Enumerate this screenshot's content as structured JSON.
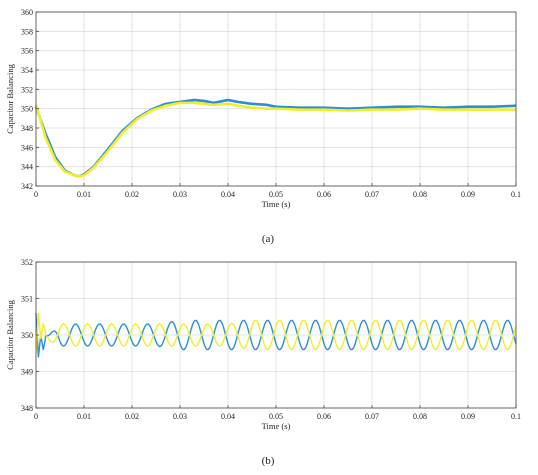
{
  "colors": {
    "series_blue": "#2b8fd6",
    "series_yellow": "#f2ee25",
    "grid": "#dddddd",
    "axis": "#444444"
  },
  "chart_data": [
    {
      "type": "line",
      "caption": "(a)",
      "xlabel": "Time (s)",
      "ylabel": "Capacitor Balancing",
      "xlim": [
        0,
        0.1
      ],
      "ylim": [
        342,
        360
      ],
      "xticks": [
        0,
        0.01,
        0.02,
        0.03,
        0.04,
        0.05,
        0.06,
        0.07,
        0.08,
        0.09,
        0.1
      ],
      "xtick_labels": [
        "0",
        "0.01",
        "0.02",
        "0.03",
        "0.04",
        "0.05",
        "0.06",
        "0.07",
        "0.08",
        "0.09",
        "0.1"
      ],
      "yticks": [
        342,
        344,
        346,
        348,
        350,
        352,
        354,
        356,
        358,
        360
      ],
      "ytick_labels": [
        "342",
        "344",
        "346",
        "348",
        "350",
        "352",
        "354",
        "356",
        "358",
        "360"
      ],
      "grid": true,
      "series": [
        {
          "color": "#2b8fd6",
          "x": [
            0,
            0.002,
            0.004,
            0.006,
            0.008,
            0.009,
            0.01,
            0.012,
            0.015,
            0.018,
            0.021,
            0.024,
            0.027,
            0.03,
            0.033,
            0.035,
            0.037,
            0.04,
            0.042,
            0.045,
            0.048,
            0.05,
            0.055,
            0.06,
            0.065,
            0.07,
            0.075,
            0.08,
            0.085,
            0.09,
            0.095,
            0.1
          ],
          "y": [
            350.2,
            347.4,
            345.0,
            343.6,
            343.1,
            343.0,
            343.2,
            344.0,
            345.8,
            347.7,
            349.0,
            349.9,
            350.5,
            350.7,
            350.9,
            350.8,
            350.6,
            350.9,
            350.7,
            350.5,
            350.4,
            350.2,
            350.1,
            350.1,
            350.0,
            350.1,
            350.2,
            350.2,
            350.1,
            350.2,
            350.2,
            350.3
          ]
        },
        {
          "color": "#f2ee25",
          "x": [
            0,
            0.002,
            0.004,
            0.006,
            0.008,
            0.009,
            0.01,
            0.012,
            0.015,
            0.018,
            0.021,
            0.024,
            0.027,
            0.03,
            0.033,
            0.035,
            0.037,
            0.04,
            0.042,
            0.045,
            0.048,
            0.05,
            0.055,
            0.06,
            0.065,
            0.07,
            0.075,
            0.08,
            0.085,
            0.09,
            0.095,
            0.1
          ],
          "y": [
            350.4,
            347.0,
            344.7,
            343.5,
            343.1,
            343.0,
            343.1,
            343.9,
            345.6,
            347.5,
            348.9,
            349.8,
            350.3,
            350.6,
            350.6,
            350.5,
            350.4,
            350.5,
            350.3,
            350.1,
            350.0,
            350.0,
            349.9,
            349.9,
            349.8,
            349.9,
            349.9,
            350.0,
            349.9,
            349.9,
            349.9,
            349.9
          ]
        }
      ]
    },
    {
      "type": "line",
      "caption": "(b)",
      "xlabel": "Time (s)",
      "ylabel": "Capacitor Balancing",
      "xlim": [
        0,
        0.1
      ],
      "ylim": [
        348,
        352
      ],
      "xticks": [
        0,
        0.01,
        0.02,
        0.03,
        0.04,
        0.05,
        0.06,
        0.07,
        0.08,
        0.09,
        0.1
      ],
      "xtick_labels": [
        "0",
        "0.01",
        "0.02",
        "0.03",
        "0.04",
        "0.05",
        "0.06",
        "0.07",
        "0.08",
        "0.09",
        "0.1"
      ],
      "yticks": [
        348,
        349,
        350,
        351,
        352
      ],
      "ytick_labels": [
        "348",
        "349",
        "350",
        "351",
        "352"
      ],
      "grid": true,
      "series": [
        {
          "color": "#2b8fd6",
          "x": [
            0,
            0.0005,
            0.001,
            0.0015,
            0.002,
            0.005,
            0.01,
            0.015,
            0.02,
            0.025,
            0.03,
            0.035,
            0.04,
            0.045,
            0.05,
            0.055,
            0.06,
            0.065,
            0.07,
            0.075,
            0.08,
            0.085,
            0.09,
            0.095,
            0.1
          ],
          "y": [
            350.6,
            349.4,
            350.0,
            349.6,
            349.9,
            350.3,
            350.3,
            350.3,
            350.3,
            350.3,
            350.4,
            350.4,
            350.4,
            350.4,
            350.4,
            350.4,
            350.4,
            350.4,
            350.4,
            350.4,
            350.4,
            350.4,
            350.4,
            350.4,
            350.4
          ],
          "oscillation": {
            "period": 0.005,
            "center": 350.0,
            "phase_start": 0.002
          }
        },
        {
          "color": "#f2ee25",
          "x": [
            0,
            0.0005,
            0.001,
            0.0015,
            0.002,
            0.005,
            0.01,
            0.015,
            0.02,
            0.025,
            0.03,
            0.035,
            0.04,
            0.045,
            0.05,
            0.055,
            0.06,
            0.065,
            0.07,
            0.075,
            0.08,
            0.085,
            0.09,
            0.095,
            0.1
          ],
          "y": [
            349.5,
            350.6,
            349.9,
            350.3,
            350.1,
            350.3,
            350.3,
            350.3,
            350.3,
            350.3,
            350.3,
            350.3,
            350.3,
            350.4,
            350.4,
            350.4,
            350.4,
            350.4,
            350.4,
            350.4,
            350.4,
            350.4,
            350.4,
            350.4,
            350.4
          ],
          "oscillation": {
            "period": 0.005,
            "center": 350.0,
            "phase_start": 0.002
          }
        }
      ]
    }
  ]
}
